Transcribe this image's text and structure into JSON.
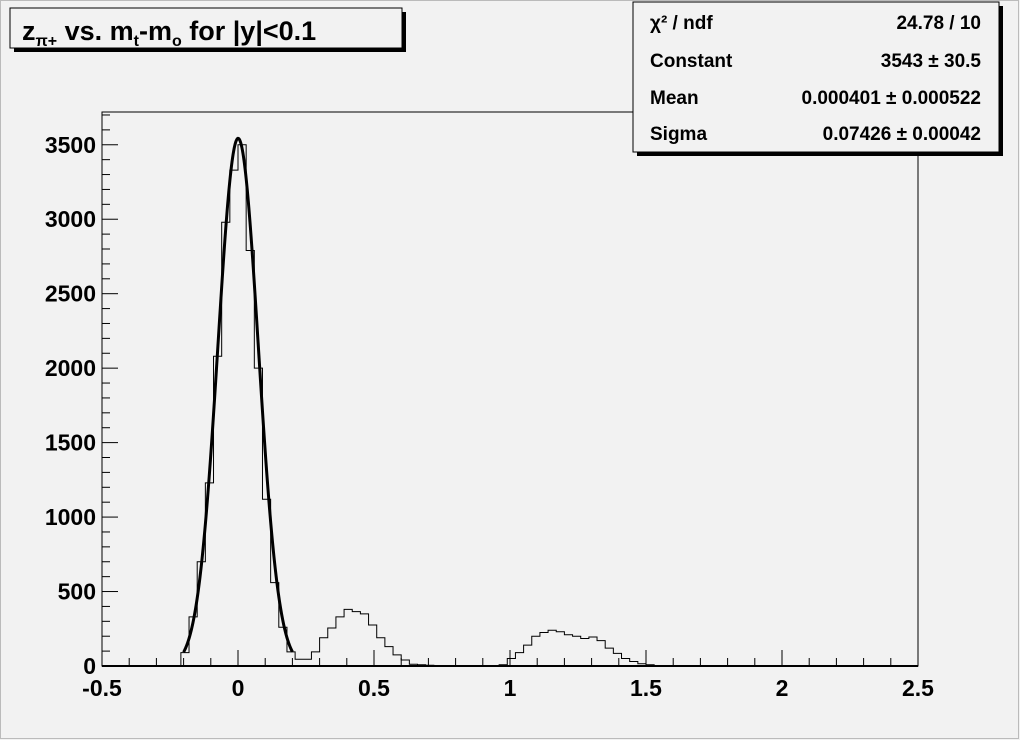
{
  "chart_data": {
    "type": "bar",
    "style": "step-histogram with gaussian fit",
    "title_parts": {
      "z": "z",
      "z_sub": "π+",
      "vs": " vs. m",
      "t_sub": "t",
      "minus": "-m",
      "o_sub": "o",
      "rest": " for |y|<0.1"
    },
    "xlim": [
      -0.5,
      2.5
    ],
    "ylim": [
      0,
      3720
    ],
    "x_ticks": [
      "-0.5",
      "0",
      "0.5",
      "1",
      "1.5",
      "2",
      "2.5"
    ],
    "y_ticks": [
      "0",
      "500",
      "1000",
      "1500",
      "2000",
      "2500",
      "3000",
      "3500"
    ],
    "bin_width": 0.03,
    "bin_centers": [
      -0.195,
      -0.165,
      -0.135,
      -0.105,
      -0.075,
      -0.045,
      -0.015,
      0.015,
      0.045,
      0.075,
      0.105,
      0.135,
      0.165,
      0.195,
      0.225,
      0.255,
      0.285,
      0.315,
      0.345,
      0.375,
      0.405,
      0.435,
      0.465,
      0.495,
      0.525,
      0.555,
      0.585,
      0.615,
      0.645,
      0.675,
      0.705,
      0.735,
      0.765,
      0.795,
      0.825,
      0.855,
      0.885,
      0.915,
      0.945,
      0.975,
      1.005,
      1.035,
      1.065,
      1.095,
      1.125,
      1.155,
      1.185,
      1.215,
      1.245,
      1.275,
      1.305,
      1.335,
      1.365,
      1.395,
      1.425,
      1.455,
      1.485,
      1.515,
      1.545
    ],
    "values": [
      90,
      330,
      700,
      1230,
      2080,
      2980,
      3330,
      3500,
      2790,
      2000,
      1120,
      560,
      260,
      95,
      45,
      45,
      95,
      190,
      255,
      330,
      380,
      365,
      350,
      275,
      190,
      130,
      75,
      40,
      12,
      8,
      5,
      3,
      2,
      1,
      0,
      0,
      0,
      0,
      3,
      8,
      50,
      90,
      140,
      200,
      225,
      240,
      230,
      210,
      200,
      185,
      195,
      170,
      120,
      85,
      50,
      30,
      15,
      8,
      3
    ],
    "fit": {
      "function": "gaussian",
      "constant": 3543,
      "mean": 0.000401,
      "sigma": 0.07426,
      "range": [
        -0.2,
        0.2
      ]
    },
    "colors": {
      "background": "#f2f2f2",
      "line": "#000000"
    }
  },
  "stats": {
    "rows": [
      {
        "label": "χ² / ndf",
        "value": "24.78 / 10"
      },
      {
        "label": "Constant",
        "value": "3543 ± 30.5"
      },
      {
        "label": "Mean",
        "value": "0.000401 ± 0.000522"
      },
      {
        "label": "Sigma",
        "value": "0.07426 ± 0.00042"
      }
    ]
  }
}
